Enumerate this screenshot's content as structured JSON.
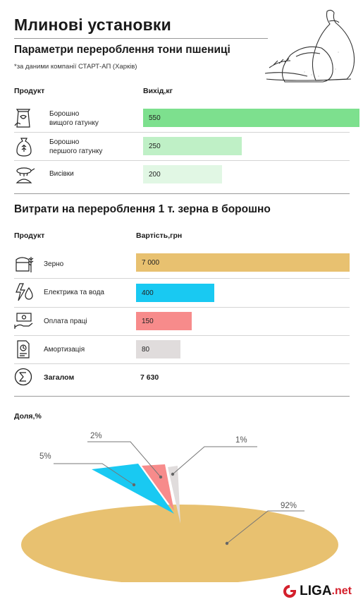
{
  "title": "Млинові установки",
  "subtitle": "Параметри перероблення тони пшениці",
  "source": "*за даними компанії СТАРТ-АП (Харків)",
  "table1": {
    "col_product": "Продукт",
    "col_value": "Вихід,кг",
    "rows": [
      {
        "label_line1": "Борошно",
        "label_line2": "вищого гатунку",
        "value": 550,
        "value_text": "550",
        "color": "#7de08e",
        "icon": "flour-bag-icon"
      },
      {
        "label_line1": "Борошно",
        "label_line2": "першого гатунку",
        "value": 250,
        "value_text": "250",
        "color": "#bff0c6",
        "icon": "flour-sack-icon"
      },
      {
        "label_line1": "Висівки",
        "label_line2": "",
        "value": 200,
        "value_text": "200",
        "color": "#e1f7e4",
        "icon": "bran-sieve-icon"
      }
    ]
  },
  "section2_title": "Витрати на перероблення 1 т. зерна в борошно",
  "table2": {
    "col_product": "Продукт",
    "col_value": "Вартість,грн",
    "rows": [
      {
        "label": "Зерно",
        "value": 7000,
        "value_text": "7 000",
        "color": "#e8c170",
        "icon": "grain-icon"
      },
      {
        "label": "Електрика та вода",
        "value": 400,
        "value_text": "400",
        "color": "#19c9f2",
        "icon": "electricity-water-icon"
      },
      {
        "label": "Оплата праці",
        "value": 150,
        "value_text": "150",
        "color": "#f78b8b",
        "icon": "salary-icon"
      },
      {
        "label": "Амортизація",
        "value": 80,
        "value_text": "80",
        "color": "#e0dcdc",
        "icon": "depreciation-icon"
      }
    ],
    "total_label": "Загалом",
    "total_value": "7 630",
    "total_icon": "sum-icon"
  },
  "share_title": "Доля,%",
  "chart_data": {
    "type": "pie",
    "title": "Доля,%",
    "slices": [
      {
        "label": "Зерно",
        "value": 92,
        "label_text": "92%",
        "color": "#e8c170"
      },
      {
        "label": "Електрика та вода",
        "value": 5,
        "label_text": "5%",
        "color": "#19c9f2"
      },
      {
        "label": "Оплата праці",
        "value": 2,
        "label_text": "2%",
        "color": "#f78b8b"
      },
      {
        "label": "Амортизація",
        "value": 1,
        "label_text": "1%",
        "color": "#e0dcdc"
      }
    ]
  },
  "logo": {
    "main": "LIGA",
    "suffix": ".net",
    "icon": "liga-logo-icon"
  }
}
